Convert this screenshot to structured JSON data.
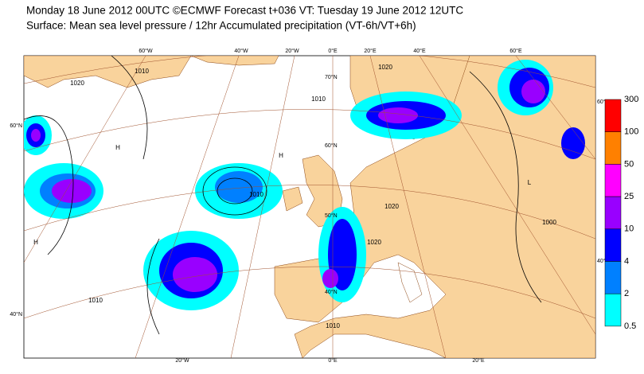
{
  "header": {
    "title": "Monday 18 June 2012 00UTC ©ECMWF Forecast t+036 VT: Tuesday 19 June 2012 12UTC",
    "subtitle": "Surface: Mean sea level pressure / 12hr Accumulated precipitation (VT-6h/VT+6h)"
  },
  "map": {
    "longitude_labels_top": [
      "60°W",
      "40°W",
      "20°W",
      "0°E",
      "20°E",
      "40°E",
      "60°E"
    ],
    "longitude_labels_bottom": [
      "20°W",
      "0°E",
      "20°E"
    ],
    "latitude_labels_left": [
      "60°N",
      "40°N"
    ],
    "latitude_labels_right": [
      "60°N",
      "40°N"
    ],
    "latitude_labels_inner": [
      "70°N",
      "60°N",
      "50°N",
      "40°N"
    ],
    "isobar_labels": [
      "1020",
      "1010",
      "1010",
      "1010",
      "1020",
      "1020",
      "1020",
      "1010",
      "1010",
      "1000"
    ],
    "high_labels": [
      "H",
      "H",
      "H",
      "L"
    ]
  },
  "colorbar": {
    "levels": [
      300,
      100,
      50,
      25,
      10,
      4,
      2,
      0.5
    ],
    "colors": [
      "#ff0000",
      "#ff8000",
      "#ff00ff",
      "#9900ff",
      "#0000ff",
      "#0080ff",
      "#00ffff"
    ]
  }
}
